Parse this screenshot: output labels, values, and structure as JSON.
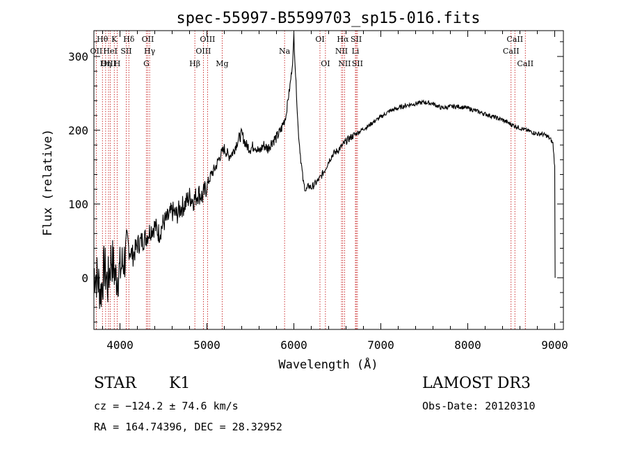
{
  "chart_data": {
    "type": "line",
    "title": "spec-55997-B5599703_sp15-016.fits",
    "xlabel": "Wavelength (Å)",
    "ylabel": "Flux (relative)",
    "xlim": [
      3700,
      9100
    ],
    "ylim": [
      -70,
      335
    ],
    "xticks": [
      4000,
      5000,
      6000,
      7000,
      8000,
      9000
    ],
    "yticks": [
      0,
      100,
      200,
      300
    ],
    "grid": false,
    "series": [
      {
        "name": "flux",
        "x": [
          3700,
          3740,
          3780,
          3820,
          3860,
          3900,
          3950,
          4000,
          4050,
          4100,
          4150,
          4200,
          4250,
          4300,
          4350,
          4400,
          4450,
          4500,
          4550,
          4600,
          4650,
          4700,
          4750,
          4800,
          4850,
          4900,
          4950,
          5000,
          5050,
          5100,
          5150,
          5200,
          5250,
          5300,
          5350,
          5400,
          5450,
          5500,
          5550,
          5600,
          5650,
          5700,
          5750,
          5800,
          5850,
          5880,
          5910,
          5930,
          5950,
          5970,
          5990,
          6000,
          6010,
          6030,
          6050,
          6080,
          6110,
          6140,
          6170,
          6200,
          6250,
          6300,
          6350,
          6400,
          6450,
          6500,
          6550,
          6600,
          6650,
          6700,
          6750,
          6800,
          6850,
          6900,
          6950,
          7000,
          7050,
          7100,
          7200,
          7300,
          7400,
          7500,
          7600,
          7700,
          7800,
          7900,
          8000,
          8100,
          8200,
          8300,
          8400,
          8500,
          8600,
          8700,
          8800,
          8850,
          8900,
          8950,
          8980,
          9000,
          9005
        ],
        "y": [
          10,
          0,
          -20,
          15,
          -10,
          30,
          0,
          10,
          25,
          40,
          30,
          45,
          50,
          55,
          65,
          70,
          60,
          75,
          80,
          90,
          85,
          95,
          100,
          110,
          105,
          115,
          110,
          125,
          140,
          150,
          165,
          175,
          165,
          170,
          185,
          195,
          180,
          175,
          180,
          170,
          180,
          175,
          185,
          190,
          200,
          210,
          220,
          240,
          255,
          275,
          300,
          330,
          300,
          250,
          200,
          160,
          128,
          118,
          125,
          122,
          128,
          135,
          145,
          158,
          168,
          172,
          178,
          185,
          190,
          194,
          198,
          202,
          205,
          210,
          214,
          218,
          222,
          226,
          230,
          234,
          236,
          238,
          236,
          230,
          232,
          232,
          230,
          226,
          222,
          218,
          214,
          208,
          203,
          199,
          195,
          195,
          193,
          188,
          182,
          150,
          0
        ]
      }
    ],
    "lines": [
      {
        "name": "Hθ",
        "wave": 3798,
        "row": 0
      },
      {
        "name": "K",
        "wave": 3934,
        "row": 0
      },
      {
        "name": "Hδ",
        "wave": 4102,
        "row": 0
      },
      {
        "name": "OII",
        "wave": 4320,
        "row": 0
      },
      {
        "name": "OIII",
        "wave": 5007,
        "row": 0
      },
      {
        "name": "OI",
        "wave": 6300,
        "row": 0
      },
      {
        "name": "Hα",
        "wave": 6563,
        "row": 0
      },
      {
        "name": "SII",
        "wave": 6717,
        "row": 0
      },
      {
        "name": "CaII",
        "wave": 8542,
        "row": 0
      },
      {
        "name": "OII",
        "wave": 3727,
        "row": 1
      },
      {
        "name": "HeI",
        "wave": 3889,
        "row": 1
      },
      {
        "name": "SII",
        "wave": 4072,
        "row": 1
      },
      {
        "name": "Hγ",
        "wave": 4341,
        "row": 1
      },
      {
        "name": "OIII",
        "wave": 4959,
        "row": 1
      },
      {
        "name": "NII",
        "wave": 6548,
        "row": 1
      },
      {
        "name": "Li",
        "wave": 6708,
        "row": 1
      },
      {
        "name": "CaII",
        "wave": 8498,
        "row": 1
      },
      {
        "name": "Na",
        "wave": 5893,
        "row": 1
      },
      {
        "name": "OIII",
        "wave": 3868,
        "row": 2
      },
      {
        "name": "Hη",
        "wave": 3835,
        "row": 2
      },
      {
        "name": "H",
        "wave": 3968,
        "row": 2
      },
      {
        "name": "G",
        "wave": 4304,
        "row": 2
      },
      {
        "name": "Hβ",
        "wave": 4861,
        "row": 2
      },
      {
        "name": "Mg",
        "wave": 5175,
        "row": 2
      },
      {
        "name": "OI",
        "wave": 6363,
        "row": 2
      },
      {
        "name": "NII",
        "wave": 6583,
        "row": 2
      },
      {
        "name": "SII",
        "wave": 6731,
        "row": 2
      },
      {
        "name": "CaII",
        "wave": 8662,
        "row": 2
      }
    ]
  },
  "info": {
    "object_class": "STAR",
    "subclass": "K1",
    "survey": "LAMOST DR3",
    "redshift": "cz = −124.2 ± 74.6 km/s",
    "obs_date": "Obs-Date: 20120310",
    "coords": "RA = 164.74396, DEC =  28.32952"
  },
  "colors": {
    "spectrum": "#000000",
    "line_markers": "#c00000",
    "axes": "#000000"
  }
}
